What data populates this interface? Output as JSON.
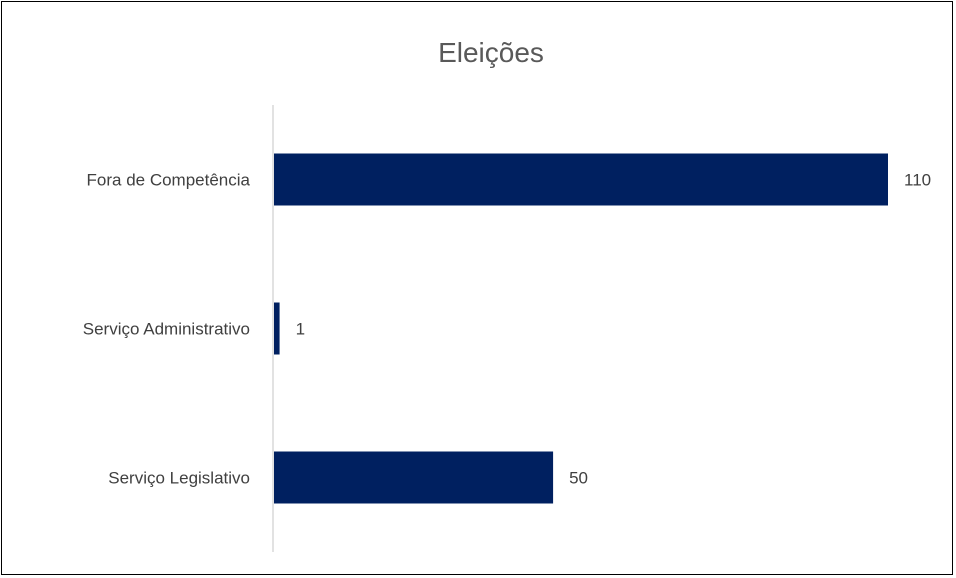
{
  "chart_data": {
    "type": "bar",
    "orientation": "horizontal",
    "title": "Eleições",
    "categories": [
      "Fora de Competência",
      "Serviço Administrativo",
      "Serviço Legislativo"
    ],
    "values": [
      110,
      1,
      50
    ],
    "data_labels": [
      "110",
      "1",
      "50"
    ],
    "xlim": [
      0,
      110
    ],
    "bar_color": "#002060",
    "axis_color": "#d9d9d9",
    "grid": false,
    "legend": "none"
  }
}
